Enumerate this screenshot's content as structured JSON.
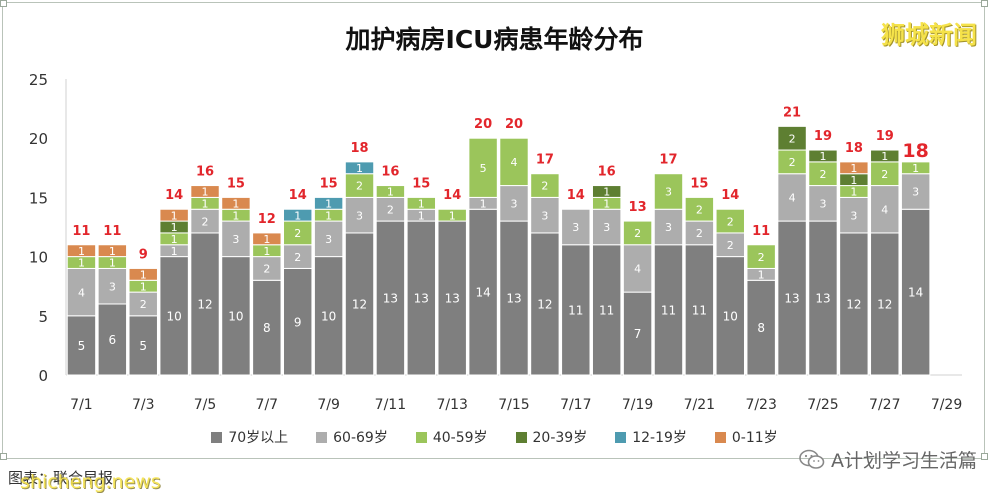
{
  "title": "加护病房ICU病患年龄分布",
  "brand": "狮城新闻",
  "source_text": "图表：联合早报",
  "watermark_site": "shicheng.news",
  "wechat_account": "A计划学习生活篇",
  "chart_data": {
    "type": "bar",
    "stacked": true,
    "title": "加护病房ICU病患年龄分布",
    "xlabel": "",
    "ylabel": "",
    "ylim": [
      0,
      25
    ],
    "yticks": [
      0,
      5,
      10,
      15,
      20,
      25
    ],
    "categories": [
      "7/1",
      "7/2",
      "7/3",
      "7/4",
      "7/5",
      "7/6",
      "7/7",
      "7/8",
      "7/9",
      "7/10",
      "7/11",
      "7/12",
      "7/13",
      "7/14",
      "7/15",
      "7/16",
      "7/17",
      "7/18",
      "7/19",
      "7/20",
      "7/21",
      "7/22",
      "7/23",
      "7/24",
      "7/25",
      "7/26",
      "7/27",
      "7/28",
      "7/29"
    ],
    "xtick_labels": [
      "7/1",
      "",
      "7/3",
      "",
      "7/5",
      "",
      "7/7",
      "",
      "7/9",
      "",
      "7/11",
      "",
      "7/13",
      "",
      "7/15",
      "",
      "7/17",
      "",
      "7/19",
      "",
      "7/21",
      "",
      "7/23",
      "",
      "7/25",
      "",
      "7/27",
      "",
      "7/29"
    ],
    "series": [
      {
        "name": "70岁以上",
        "color": "#7f7f7f",
        "values": [
          5,
          6,
          5,
          10,
          12,
          10,
          8,
          9,
          10,
          12,
          13,
          13,
          13,
          14,
          13,
          12,
          11,
          11,
          7,
          11,
          11,
          10,
          8,
          13,
          13,
          12,
          12,
          14,
          0
        ]
      },
      {
        "name": "60-69岁",
        "color": "#adadad",
        "values": [
          4,
          3,
          2,
          1,
          2,
          3,
          2,
          2,
          3,
          3,
          2,
          1,
          0,
          1,
          3,
          3,
          3,
          3,
          4,
          3,
          2,
          2,
          1,
          4,
          3,
          3,
          4,
          3,
          0
        ]
      },
      {
        "name": "40-59岁",
        "color": "#9bc55b",
        "values": [
          1,
          1,
          1,
          1,
          1,
          1,
          1,
          2,
          1,
          2,
          1,
          1,
          1,
          5,
          4,
          2,
          0,
          1,
          2,
          3,
          2,
          2,
          2,
          2,
          2,
          1,
          2,
          1,
          0
        ]
      },
      {
        "name": "20-39岁",
        "color": "#5e7f32",
        "values": [
          0,
          0,
          0,
          1,
          0,
          0,
          0,
          0,
          0,
          0,
          0,
          0,
          0,
          0,
          0,
          0,
          0,
          1,
          0,
          0,
          0,
          0,
          0,
          2,
          1,
          1,
          1,
          0,
          0
        ]
      },
      {
        "name": "12-19岁",
        "color": "#4e9bb0",
        "values": [
          0,
          0,
          0,
          0,
          0,
          0,
          0,
          1,
          1,
          1,
          0,
          0,
          0,
          0,
          0,
          0,
          0,
          0,
          0,
          0,
          0,
          0,
          0,
          0,
          0,
          0,
          0,
          0,
          0
        ]
      },
      {
        "name": "0-11岁",
        "color": "#d9894f",
        "values": [
          1,
          1,
          1,
          1,
          1,
          1,
          1,
          0,
          0,
          0,
          0,
          0,
          0,
          0,
          0,
          0,
          0,
          0,
          0,
          0,
          0,
          0,
          0,
          0,
          0,
          1,
          0,
          0,
          0
        ]
      }
    ],
    "totals": [
      11,
      11,
      9,
      14,
      16,
      15,
      12,
      14,
      15,
      18,
      16,
      15,
      14,
      20,
      20,
      17,
      14,
      16,
      13,
      17,
      15,
      14,
      11,
      21,
      19,
      18,
      19,
      18,
      null
    ],
    "highlight_index": 27,
    "total_label_color": "#e2262c",
    "grid": false,
    "legend_position": "bottom"
  }
}
